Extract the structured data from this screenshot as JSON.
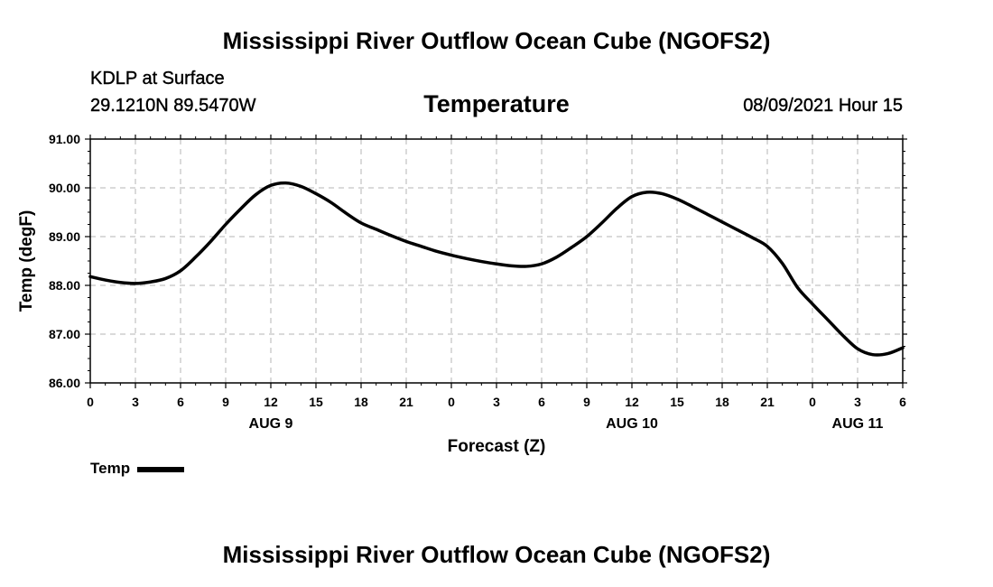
{
  "header": {
    "title": "Mississippi River Outflow Ocean Cube (NGOFS2)",
    "station": "KDLP at Surface",
    "coords": "29.1210N  89.5470W",
    "chart_title": "Temperature",
    "datetime": "08/09/2021 Hour 15"
  },
  "footer": {
    "title": "Mississippi River Outflow Ocean Cube (NGOFS2)"
  },
  "legend": {
    "label": "Temp",
    "color": "#000000"
  },
  "chart_data": {
    "type": "line",
    "title": "Temperature",
    "xlabel": "Forecast (Z)",
    "ylabel": "Temp (degF)",
    "ylim": [
      86.0,
      91.0
    ],
    "xlim": [
      0,
      54
    ],
    "grid": true,
    "y_ticks": [
      "86.00",
      "87.00",
      "88.00",
      "89.00",
      "90.00",
      "91.00"
    ],
    "y_tick_values": [
      86,
      87,
      88,
      89,
      90,
      91
    ],
    "x_tick_hours": [
      0,
      3,
      6,
      9,
      12,
      15,
      18,
      21,
      24,
      27,
      30,
      33,
      36,
      39,
      42,
      45,
      48,
      51,
      54
    ],
    "x_tick_labels": [
      "0",
      "3",
      "6",
      "9",
      "12",
      "15",
      "18",
      "21",
      "0",
      "3",
      "6",
      "9",
      "12",
      "15",
      "18",
      "21",
      "0",
      "3",
      "6"
    ],
    "date_labels": [
      {
        "label": "AUG 9",
        "hour": 12
      },
      {
        "label": "AUG 10",
        "hour": 36
      },
      {
        "label": "AUG 11",
        "hour": 51
      }
    ],
    "series": [
      {
        "name": "Temp",
        "x": [
          0,
          1,
          2,
          3,
          4,
          5,
          6,
          7,
          8,
          9,
          10,
          11,
          12,
          13,
          14,
          15,
          16,
          17,
          18,
          19,
          20,
          21,
          22,
          23,
          24,
          25,
          26,
          27,
          28,
          29,
          30,
          31,
          32,
          33,
          34,
          35,
          36,
          37,
          38,
          39,
          40,
          41,
          42,
          43,
          44,
          45,
          46,
          47,
          48,
          49,
          50,
          51,
          52,
          53,
          54
        ],
        "values": [
          88.18,
          88.11,
          88.06,
          88.04,
          88.07,
          88.14,
          88.3,
          88.58,
          88.9,
          89.25,
          89.57,
          89.86,
          90.05,
          90.1,
          90.03,
          89.88,
          89.7,
          89.48,
          89.28,
          89.15,
          89.02,
          88.9,
          88.8,
          88.7,
          88.62,
          88.55,
          88.49,
          88.44,
          88.4,
          88.39,
          88.44,
          88.58,
          88.78,
          89.0,
          89.28,
          89.58,
          89.82,
          89.91,
          89.88,
          89.77,
          89.62,
          89.46,
          89.3,
          89.14,
          88.98,
          88.8,
          88.45,
          87.96,
          87.62,
          87.3,
          86.98,
          86.7,
          86.58,
          86.6,
          86.72
        ]
      }
    ]
  }
}
